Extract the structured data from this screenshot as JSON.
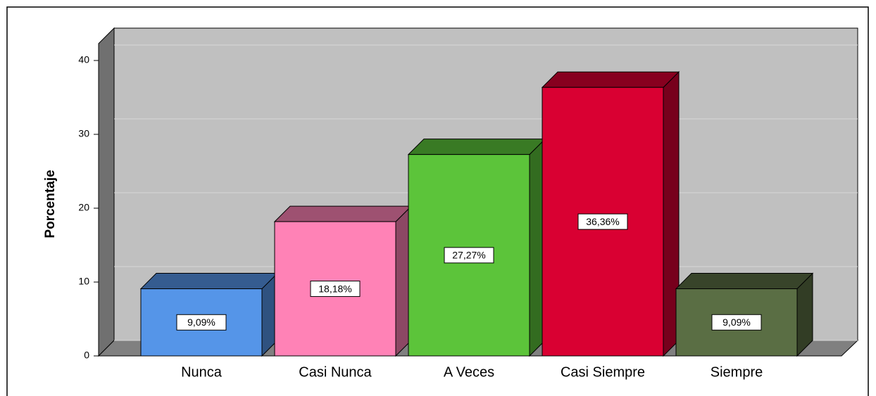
{
  "chart_data": {
    "type": "bar3d",
    "ylabel": "Porcentaje",
    "categories": [
      "Nunca",
      "Casi Nunca",
      "A Veces",
      "Casi Siempre",
      "Siempre"
    ],
    "values": [
      9.09,
      18.18,
      27.27,
      36.36,
      9.09
    ],
    "value_labels": [
      "9,09%",
      "18,18%",
      "27,27%",
      "36,36%",
      "9,09%"
    ],
    "colors": [
      "#5595e8",
      "#ff82b6",
      "#5cc43a",
      "#d90032",
      "#5a6e44"
    ],
    "ylim": [
      0,
      42
    ],
    "yticks": [
      0,
      10,
      20,
      30,
      40
    ],
    "grid": true
  }
}
